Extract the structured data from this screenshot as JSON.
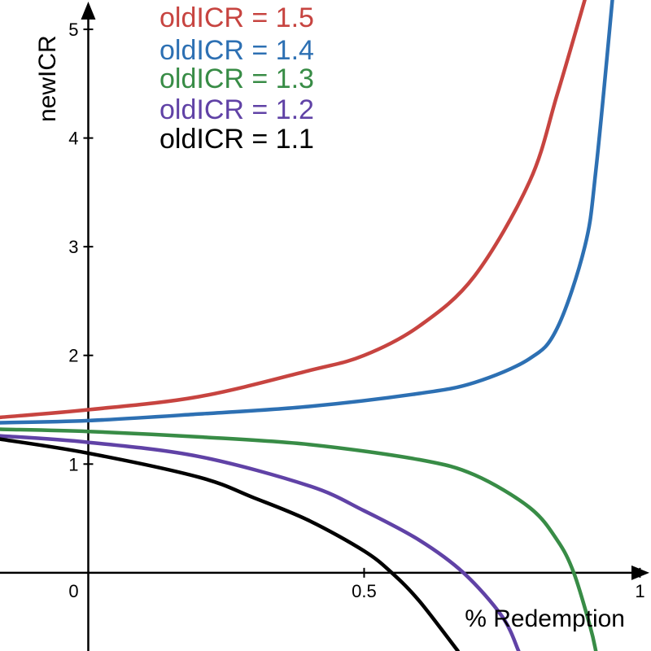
{
  "chart_data": {
    "type": "line",
    "xlabel": "% Redemption",
    "ylabel": "newICR",
    "xlim": [
      -0.16,
      1.02
    ],
    "ylim": [
      -0.72,
      5.27
    ],
    "x_ticks": [
      {
        "value": 0,
        "label": "0"
      },
      {
        "value": 0.5,
        "label": "0.5"
      },
      {
        "value": 1,
        "label": "1"
      }
    ],
    "y_ticks": [
      {
        "value": 1,
        "label": "1"
      },
      {
        "value": 2,
        "label": "2"
      },
      {
        "value": 3,
        "label": "3"
      },
      {
        "value": 4,
        "label": "4"
      },
      {
        "value": 5,
        "label": "5"
      }
    ],
    "grid": false,
    "legend_position": "top-center",
    "series": [
      {
        "name": "oldICR = 1.5",
        "oldICR": 1.5,
        "color": "#c74440",
        "points": [
          [
            -0.16,
            1.43
          ],
          [
            0,
            1.5
          ],
          [
            0.2,
            1.62
          ],
          [
            0.4,
            1.86
          ],
          [
            0.5,
            2.0
          ],
          [
            0.6,
            2.27
          ],
          [
            0.7,
            2.73
          ],
          [
            0.8,
            3.6
          ],
          [
            0.85,
            4.4
          ],
          [
            0.9,
            5.27
          ]
        ]
      },
      {
        "name": "oldICR = 1.4",
        "oldICR": 1.4,
        "color": "#2d70b3",
        "points": [
          [
            -0.16,
            1.38
          ],
          [
            0,
            1.4
          ],
          [
            0.2,
            1.46
          ],
          [
            0.4,
            1.53
          ],
          [
            0.6,
            1.65
          ],
          [
            0.7,
            1.75
          ],
          [
            0.8,
            1.97
          ],
          [
            0.85,
            2.25
          ],
          [
            0.9,
            3.0
          ],
          [
            0.92,
            3.7
          ],
          [
            0.95,
            5.27
          ]
        ]
      },
      {
        "name": "oldICR = 1.3",
        "oldICR": 1.3,
        "color": "#388c46",
        "points": [
          [
            -0.16,
            1.32
          ],
          [
            0,
            1.3
          ],
          [
            0.2,
            1.25
          ],
          [
            0.4,
            1.18
          ],
          [
            0.6,
            1.04
          ],
          [
            0.7,
            0.9
          ],
          [
            0.8,
            0.6
          ],
          [
            0.85,
            0.3
          ],
          [
            0.88,
            0.0
          ],
          [
            0.91,
            -0.5
          ],
          [
            0.92,
            -0.72
          ]
        ]
      },
      {
        "name": "oldICR = 1.2",
        "oldICR": 1.2,
        "color": "#6042a6",
        "points": [
          [
            -0.16,
            1.26
          ],
          [
            0,
            1.2
          ],
          [
            0.2,
            1.07
          ],
          [
            0.4,
            0.8
          ],
          [
            0.5,
            0.57
          ],
          [
            0.6,
            0.3
          ],
          [
            0.68,
            0.0
          ],
          [
            0.75,
            -0.4
          ],
          [
            0.78,
            -0.72
          ]
        ]
      },
      {
        "name": "oldICR = 1.1",
        "oldICR": 1.1,
        "color": "#000000",
        "points": [
          [
            -0.16,
            1.23
          ],
          [
            0,
            1.1
          ],
          [
            0.2,
            0.88
          ],
          [
            0.3,
            0.69
          ],
          [
            0.4,
            0.48
          ],
          [
            0.5,
            0.2
          ],
          [
            0.55,
            0.0
          ],
          [
            0.6,
            -0.26
          ],
          [
            0.67,
            -0.72
          ]
        ]
      }
    ]
  }
}
